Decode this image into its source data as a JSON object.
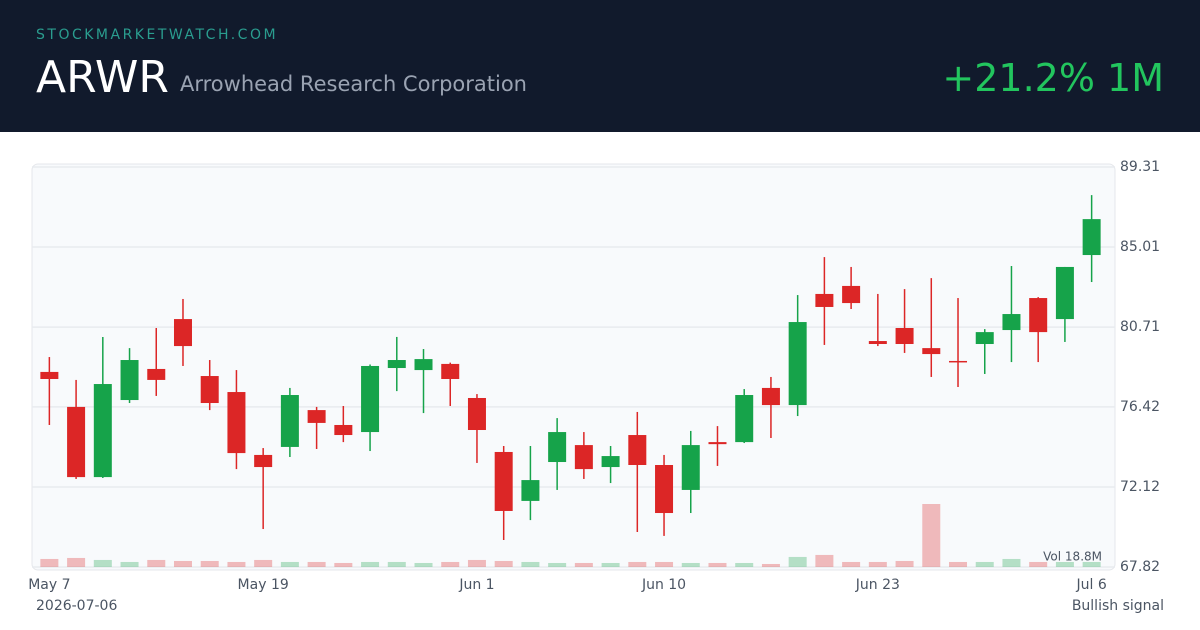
{
  "header": {
    "site": "STOCKMARKETWATCH.COM",
    "ticker": "ARWR",
    "company": "Arrowhead Research Corporation",
    "change": "+21.2% 1M"
  },
  "chart_data": {
    "type": "candlestick",
    "categories": [
      "May 7",
      null,
      null,
      null,
      null,
      null,
      null,
      null,
      "May 19",
      null,
      null,
      null,
      null,
      null,
      null,
      null,
      "Jun 1",
      null,
      null,
      null,
      null,
      null,
      null,
      "Jun 10",
      null,
      null,
      null,
      null,
      null,
      null,
      null,
      "Jun 23",
      null,
      null,
      null,
      null,
      null,
      null,
      null,
      "Jul 6"
    ],
    "open": [
      78.3,
      76.42,
      72.65,
      76.79,
      78.46,
      81.14,
      78.08,
      77.22,
      73.84,
      74.27,
      76.25,
      75.45,
      75.07,
      78.51,
      78.4,
      78.73,
      76.9,
      74.0,
      71.37,
      73.46,
      74.37,
      73.19,
      74.91,
      73.3,
      71.96,
      74.53,
      74.53,
      77.44,
      76.52,
      82.49,
      82.92,
      79.96,
      80.66,
      79.58,
      78.89,
      79.8,
      80.55,
      82.27,
      81.14,
      84.58
    ],
    "high": [
      79.1,
      77.87,
      80.18,
      79.58,
      80.66,
      82.22,
      78.94,
      78.4,
      74.21,
      77.44,
      76.42,
      76.47,
      78.7,
      80.18,
      79.53,
      78.8,
      77.11,
      74.32,
      74.32,
      75.82,
      75.07,
      74.32,
      76.15,
      73.84,
      75.13,
      75.39,
      77.38,
      78.03,
      82.43,
      84.47,
      83.94,
      82.49,
      82.75,
      83.34,
      82.27,
      80.6,
      83.99,
      82.32,
      83.94,
      87.8
    ],
    "low": [
      75.45,
      72.55,
      72.6,
      76.63,
      77.01,
      78.62,
      76.25,
      73.08,
      69.86,
      73.73,
      74.16,
      74.53,
      74.05,
      77.27,
      76.09,
      76.47,
      73.41,
      69.27,
      70.34,
      71.96,
      72.55,
      72.33,
      69.7,
      69.49,
      70.72,
      73.25,
      74.48,
      74.75,
      75.93,
      79.75,
      81.68,
      79.69,
      79.32,
      78.03,
      77.49,
      78.19,
      78.83,
      78.83,
      79.91,
      83.13
    ],
    "close": [
      77.92,
      72.65,
      77.65,
      78.94,
      77.87,
      79.69,
      76.63,
      73.94,
      73.19,
      77.06,
      75.56,
      74.91,
      78.62,
      78.94,
      78.99,
      77.92,
      75.18,
      70.83,
      72.49,
      75.07,
      73.08,
      73.78,
      73.3,
      70.72,
      74.37,
      74.42,
      77.06,
      76.52,
      80.98,
      81.79,
      82.0,
      79.8,
      79.8,
      79.26,
      78.83,
      80.44,
      81.41,
      80.44,
      83.94,
      86.51
    ],
    "volume": [
      2.4,
      2.7,
      2.1,
      1.5,
      2.1,
      1.8,
      1.8,
      1.5,
      2.1,
      1.5,
      1.5,
      1.2,
      1.5,
      1.5,
      1.2,
      1.5,
      2.1,
      1.8,
      1.5,
      1.2,
      1.2,
      1.2,
      1.5,
      1.5,
      1.2,
      1.2,
      1.2,
      0.9,
      3.0,
      3.6,
      1.5,
      1.5,
      1.8,
      18.8,
      1.5,
      1.5,
      2.4,
      1.5,
      1.5,
      1.5
    ],
    "volume_label": "Vol 18.8M",
    "colors": {
      "up": "#16a34a",
      "down": "#dc2626"
    },
    "ylim": [
      67.82,
      89.31
    ],
    "yticks": [
      67.82,
      72.12,
      76.42,
      80.71,
      85.01,
      89.31
    ],
    "grid": true
  },
  "footer": {
    "date": "2026-07-06",
    "signal": "Bullish signal"
  }
}
